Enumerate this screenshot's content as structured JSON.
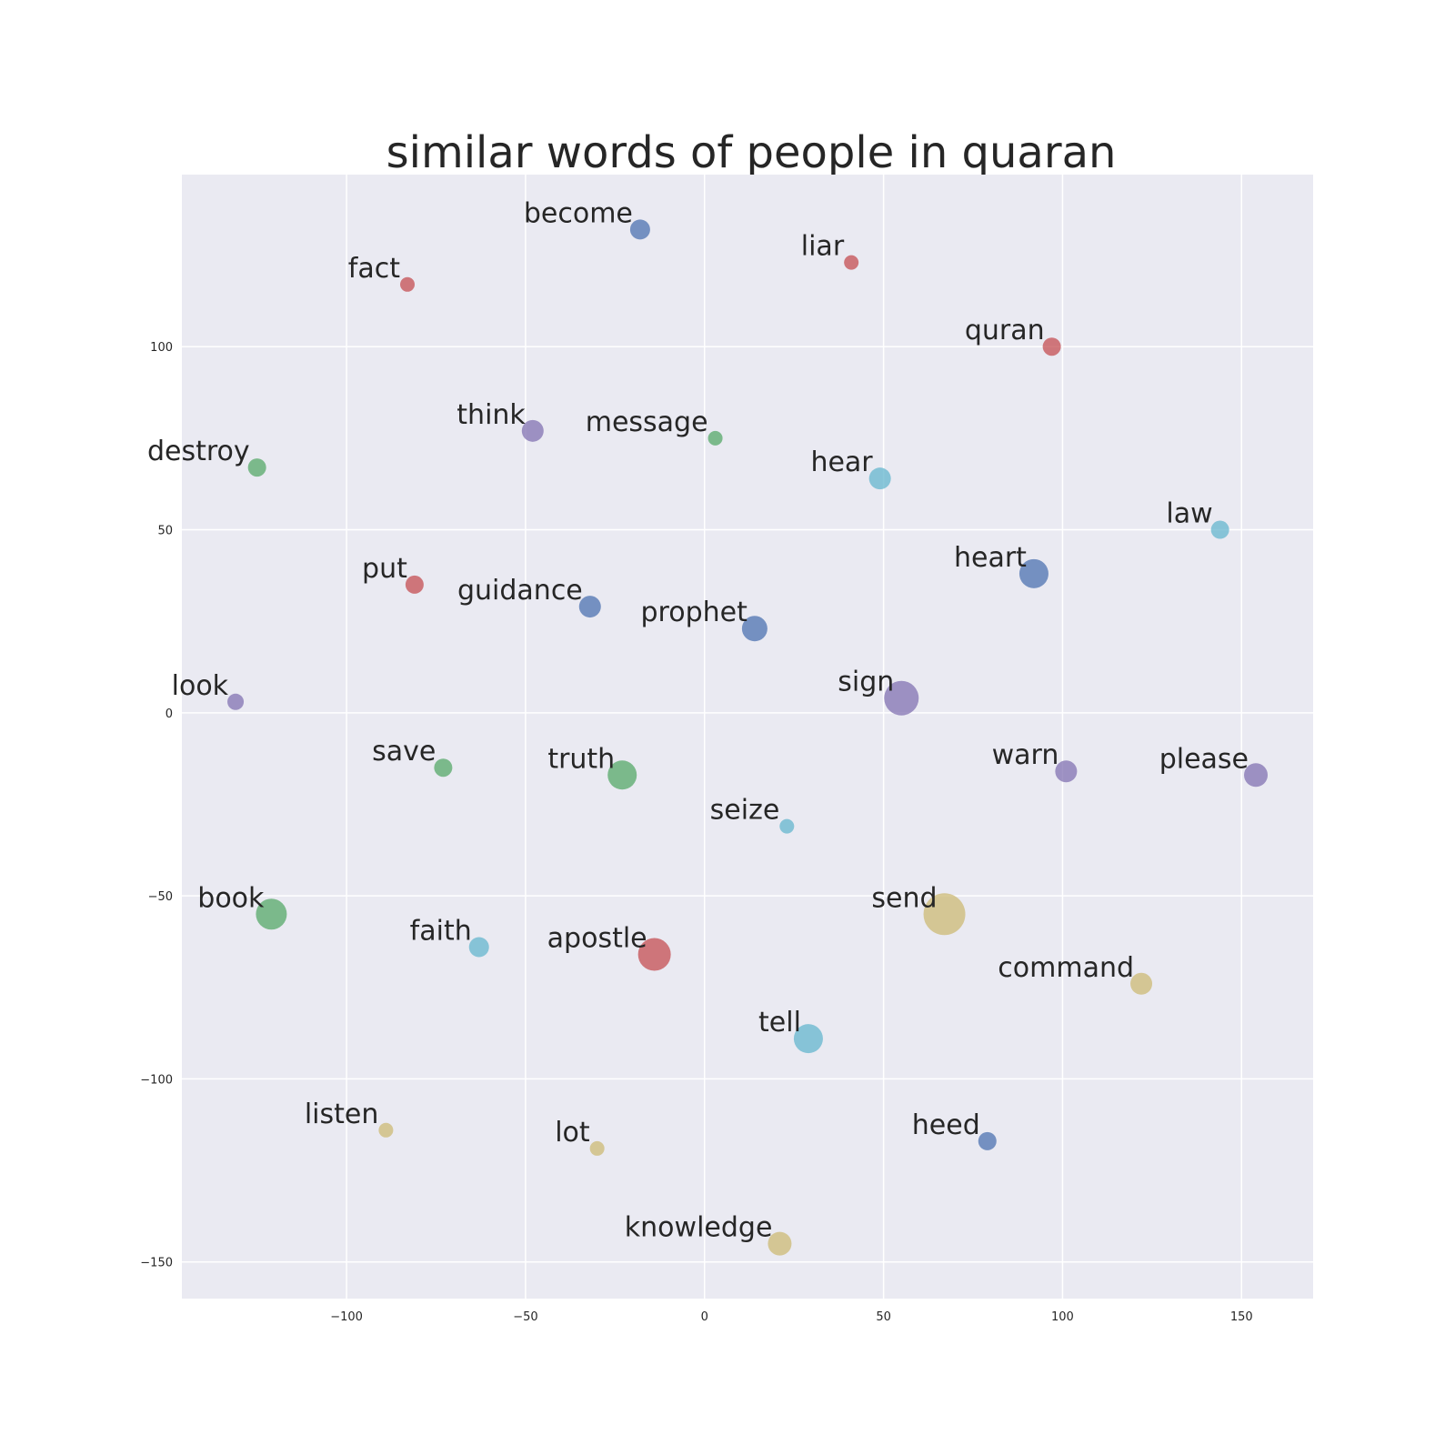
{
  "chart_data": {
    "type": "scatter",
    "title": "similar words of people in quaran",
    "xlabel": "",
    "ylabel": "",
    "xlim": [
      -146,
      170
    ],
    "ylim": [
      -160,
      147
    ],
    "grid": true,
    "x_ticks": [
      -100,
      -50,
      0,
      50,
      100,
      150
    ],
    "y_ticks": [
      100,
      50,
      0,
      -50,
      -100,
      -150
    ],
    "colors": {
      "blue": "#4c72b0",
      "green": "#55a868",
      "red": "#c44e52",
      "purple": "#8172b2",
      "yellow": "#ccb974",
      "cyan": "#64b5cd",
      "background": "#eaeaf2",
      "grid": "#ffffff",
      "text": "#262626"
    },
    "points": [
      {
        "label": "become",
        "x": -18,
        "y": 132,
        "size": 11,
        "color": "blue"
      },
      {
        "label": "liar",
        "x": 41,
        "y": 123,
        "size": 8,
        "color": "red"
      },
      {
        "label": "fact",
        "x": -83,
        "y": 117,
        "size": 8,
        "color": "red"
      },
      {
        "label": "quran",
        "x": 97,
        "y": 100,
        "size": 10,
        "color": "red"
      },
      {
        "label": "think",
        "x": -48,
        "y": 77,
        "size": 12,
        "color": "purple"
      },
      {
        "label": "message",
        "x": 3,
        "y": 75,
        "size": 8,
        "color": "green"
      },
      {
        "label": "destroy",
        "x": -125,
        "y": 67,
        "size": 10,
        "color": "green"
      },
      {
        "label": "hear",
        "x": 49,
        "y": 64,
        "size": 12,
        "color": "cyan"
      },
      {
        "label": "law",
        "x": 144,
        "y": 50,
        "size": 10,
        "color": "cyan"
      },
      {
        "label": "heart",
        "x": 92,
        "y": 38,
        "size": 16,
        "color": "blue"
      },
      {
        "label": "put",
        "x": -81,
        "y": 35,
        "size": 10,
        "color": "red"
      },
      {
        "label": "guidance",
        "x": -32,
        "y": 29,
        "size": 12,
        "color": "blue"
      },
      {
        "label": "prophet",
        "x": 14,
        "y": 23,
        "size": 14,
        "color": "blue"
      },
      {
        "label": "sign",
        "x": 55,
        "y": 4,
        "size": 19,
        "color": "purple"
      },
      {
        "label": "look",
        "x": -131,
        "y": 3,
        "size": 9,
        "color": "purple"
      },
      {
        "label": "save",
        "x": -73,
        "y": -15,
        "size": 10,
        "color": "green"
      },
      {
        "label": "truth",
        "x": -23,
        "y": -17,
        "size": 16,
        "color": "green"
      },
      {
        "label": "warn",
        "x": 101,
        "y": -16,
        "size": 12,
        "color": "purple"
      },
      {
        "label": "please",
        "x": 154,
        "y": -17,
        "size": 13,
        "color": "purple"
      },
      {
        "label": "seize",
        "x": 23,
        "y": -31,
        "size": 8,
        "color": "cyan"
      },
      {
        "label": "book",
        "x": -121,
        "y": -55,
        "size": 17,
        "color": "green"
      },
      {
        "label": "send",
        "x": 67,
        "y": -55,
        "size": 23,
        "color": "yellow"
      },
      {
        "label": "faith",
        "x": -63,
        "y": -64,
        "size": 11,
        "color": "cyan"
      },
      {
        "label": "apostle",
        "x": -14,
        "y": -66,
        "size": 18,
        "color": "red"
      },
      {
        "label": "command",
        "x": 122,
        "y": -74,
        "size": 12,
        "color": "yellow"
      },
      {
        "label": "tell",
        "x": 29,
        "y": -89,
        "size": 16,
        "color": "cyan"
      },
      {
        "label": "listen",
        "x": -89,
        "y": -114,
        "size": 8,
        "color": "yellow"
      },
      {
        "label": "lot",
        "x": -30,
        "y": -119,
        "size": 8,
        "color": "yellow"
      },
      {
        "label": "heed",
        "x": 79,
        "y": -117,
        "size": 10,
        "color": "blue"
      },
      {
        "label": "knowledge",
        "x": 21,
        "y": -145,
        "size": 13,
        "color": "yellow"
      }
    ]
  }
}
